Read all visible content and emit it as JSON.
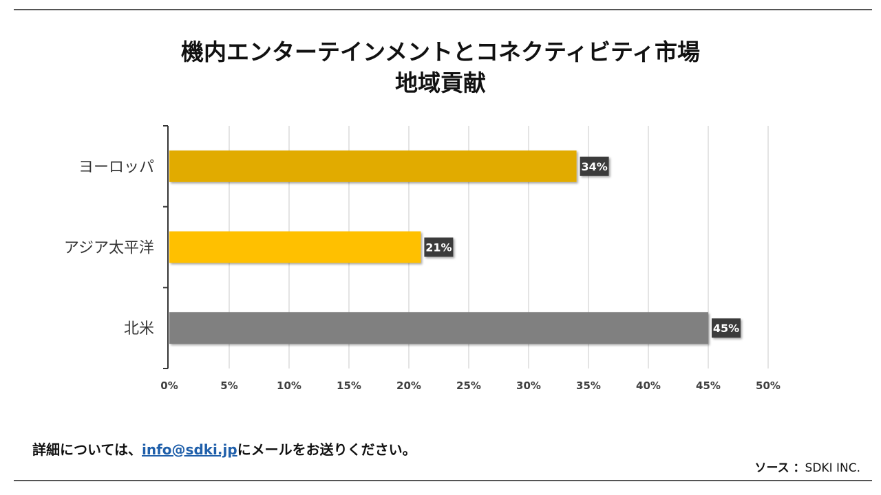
{
  "header": {
    "title_line1": "機内エンターテインメントとコネクティビティ市場",
    "title_line2": "地域貢献"
  },
  "chart_data": {
    "type": "bar",
    "orientation": "horizontal",
    "title": "機内エンターテインメントとコネクティビティ市場 地域貢献",
    "categories": [
      "ヨーロッパ",
      "アジア太平洋",
      "北米"
    ],
    "values": [
      34,
      21,
      45
    ],
    "data_labels": [
      "34%",
      "21%",
      "45%"
    ],
    "colors": [
      "#E1AB00",
      "#FFC000",
      "#808080"
    ],
    "xlim": [
      0,
      50
    ],
    "xticks": [
      "0%",
      "5%",
      "10%",
      "15%",
      "20%",
      "25%",
      "30%",
      "35%",
      "40%",
      "45%",
      "50%"
    ],
    "grid": "vertical",
    "xlabel": "",
    "ylabel": ""
  },
  "footer": {
    "prefix": "詳細については、",
    "email": "info@sdki.jp",
    "suffix": "にメールをお送りください。",
    "source_label": "ソース ：",
    "source_value": "SDKI INC."
  },
  "colors": {
    "label_box": "#3b3b3b",
    "grid": "#c8c8c8",
    "axis": "#333333",
    "link": "#1f5faa"
  }
}
